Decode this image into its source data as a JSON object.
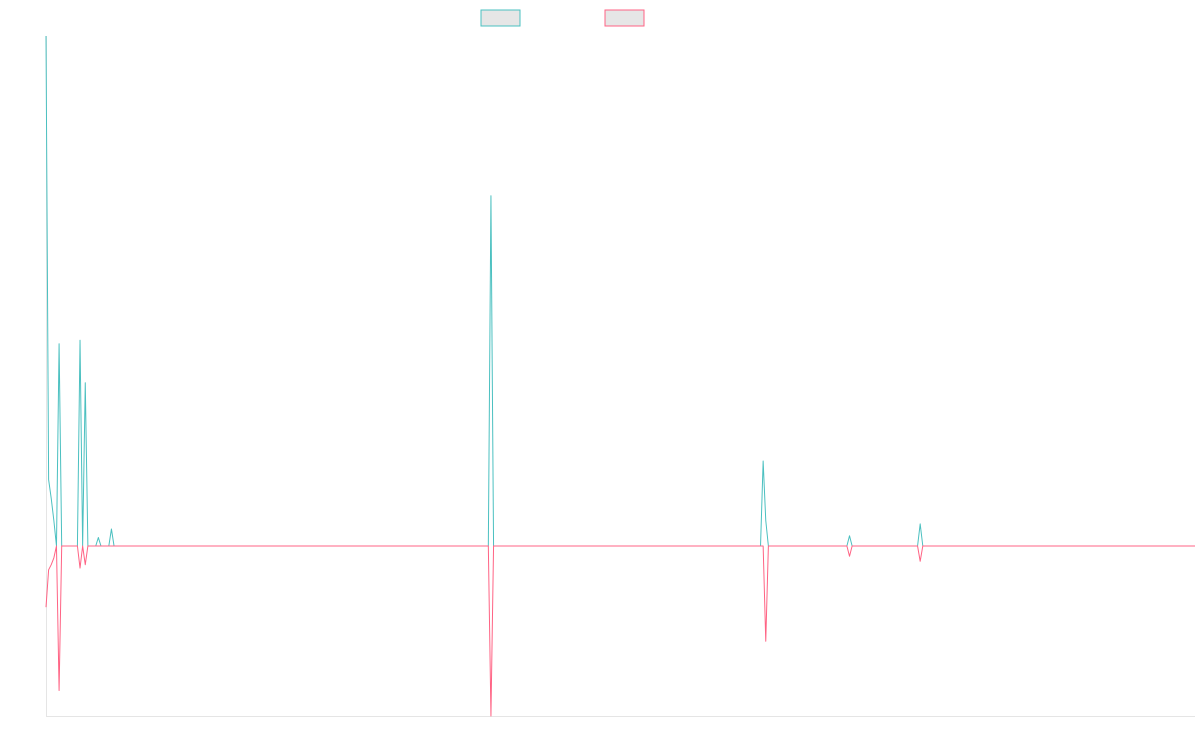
{
  "chart_data": {
    "type": "line",
    "title": "",
    "xlabel": "",
    "ylabel": "",
    "grid": false,
    "legend": {
      "position": "top-center",
      "labels_visible": false
    },
    "colors": {
      "series_1": "#4bc0c0",
      "series_2": "#ff6384",
      "axis": "#e5e5e5",
      "legend_fill": "#e6e6e6"
    },
    "x_count": 440,
    "y_range": [
      -100,
      300
    ],
    "series": [
      {
        "color": "#4bc0c0",
        "fill": "#e6e6e6",
        "default_value": 0,
        "points": [
          [
            0,
            300
          ],
          [
            1,
            39
          ],
          [
            2,
            28
          ],
          [
            3,
            15
          ],
          [
            4,
            0
          ],
          [
            5,
            119
          ],
          [
            6,
            0
          ],
          [
            12,
            0
          ],
          [
            13,
            121
          ],
          [
            14,
            0
          ],
          [
            15,
            96
          ],
          [
            16,
            0
          ],
          [
            19,
            0
          ],
          [
            20,
            5
          ],
          [
            21,
            0
          ],
          [
            24,
            0
          ],
          [
            25,
            10
          ],
          [
            26,
            0
          ],
          [
            169,
            0
          ],
          [
            170,
            206
          ],
          [
            171,
            0
          ],
          [
            273,
            0
          ],
          [
            274,
            50
          ],
          [
            275,
            15
          ],
          [
            276,
            0
          ],
          [
            306,
            0
          ],
          [
            307,
            6
          ],
          [
            308,
            0
          ],
          [
            333,
            0
          ],
          [
            334,
            13
          ],
          [
            335,
            0
          ]
        ]
      },
      {
        "color": "#ff6384",
        "fill": "#e6e6e6",
        "default_value": 0,
        "points": [
          [
            0,
            -36
          ],
          [
            1,
            -14
          ],
          [
            2,
            -11
          ],
          [
            3,
            -7
          ],
          [
            4,
            0
          ],
          [
            5,
            -85
          ],
          [
            6,
            0
          ],
          [
            12,
            0
          ],
          [
            13,
            -13
          ],
          [
            14,
            0
          ],
          [
            15,
            -11
          ],
          [
            16,
            0
          ],
          [
            169,
            0
          ],
          [
            170,
            -100
          ],
          [
            171,
            0
          ],
          [
            274,
            0
          ],
          [
            275,
            -56
          ],
          [
            276,
            0
          ],
          [
            306,
            0
          ],
          [
            307,
            -6
          ],
          [
            308,
            0
          ],
          [
            333,
            0
          ],
          [
            334,
            -9
          ],
          [
            335,
            0
          ]
        ]
      }
    ]
  }
}
